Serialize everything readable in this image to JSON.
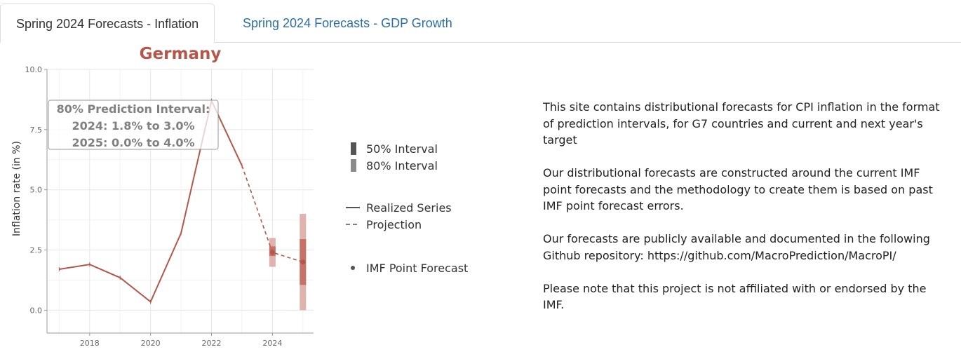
{
  "tabs": [
    {
      "label": "Spring 2024 Forecasts - Inflation",
      "active": true
    },
    {
      "label": "Spring 2024 Forecasts - GDP Growth",
      "active": false
    }
  ],
  "colors": {
    "series": "#b5564a",
    "interval50": "#c46a60",
    "interval80": "#dca6a0",
    "title": "#b5564a",
    "tab_link": "#2a6fa8",
    "legend": "#555555"
  },
  "chart_data": {
    "type": "line",
    "title": "Germany",
    "xlabel": "",
    "ylabel": "Inflation rate (in %)",
    "xlim": [
      2016.6,
      2025.35
    ],
    "ylim": [
      -0.95,
      10.0
    ],
    "xticks": [
      2018,
      2020,
      2022,
      2024
    ],
    "yticks": [
      "0.0",
      "2.5",
      "5.0",
      "7.5",
      "10.0"
    ],
    "grid": true,
    "realized": {
      "x": [
        2017,
        2018,
        2019,
        2020,
        2021,
        2022,
        2023
      ],
      "y": [
        1.7,
        1.9,
        1.35,
        0.35,
        3.2,
        8.7,
        6.0
      ]
    },
    "projection": {
      "x": [
        2023,
        2024,
        2025
      ],
      "y": [
        6.0,
        2.4,
        2.0
      ]
    },
    "imf_point_forecast": {
      "x": [
        2024,
        2025
      ],
      "y": [
        2.4,
        2.0
      ]
    },
    "intervals": [
      {
        "year": 2024,
        "p50": [
          2.25,
          2.65
        ],
        "p80": [
          1.8,
          3.0
        ]
      },
      {
        "year": 2025,
        "p50": [
          1.05,
          2.95
        ],
        "p80": [
          0.0,
          4.0
        ]
      }
    ],
    "annotation": {
      "lines": [
        "80% Prediction Interval:",
        "2024: 1.8% to 3.0%",
        "2025: 0.0% to 4.0%"
      ]
    },
    "legend": {
      "placement": "right",
      "intervals": [
        "50% Interval",
        "80% Interval"
      ],
      "lines": [
        "Realized Series",
        "Projection"
      ],
      "points": [
        "IMF Point Forecast"
      ]
    }
  },
  "description": [
    "This site contains  distributional forecasts for CPI inflation in the format of prediction intervals, for G7 countries and current and next year's target",
    "Our distributional forecasts are constructed around the current IMF point forecasts and the methodology to create them is based on past IMF point forecast errors.",
    "Our forecasts are publicly available and documented in the following Github repository: https://github.com/MacroPrediction/MacroPI/",
    "Please note that this project is not affiliated with or endorsed by the IMF."
  ]
}
